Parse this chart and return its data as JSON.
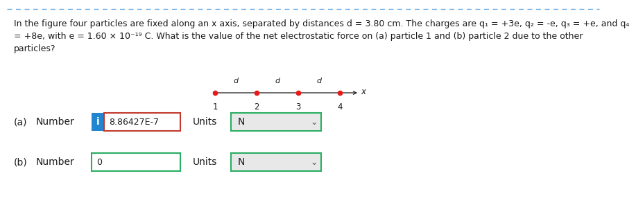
{
  "bg_color": "#ffffff",
  "top_border_color": "#6aace4",
  "main_text_line1": "In the figure four particles are fixed along an x axis, separated by distances d = 3.80 cm. The charges are q₁ = +3e, q₂ = -e, q₃ = +e, and q₄",
  "main_text_line2": "= +8e, with e = 1.60 × 10⁻¹⁹ C. What is the value of the net electrostatic force on (a) particle 1 and (b) particle 2 due to the other",
  "main_text_line3": "particles?",
  "particle_labels": [
    "1",
    "2",
    "3",
    "4"
  ],
  "d_labels": [
    "d",
    "d",
    "d"
  ],
  "axis_label": "x",
  "dot_color": "#e8191a",
  "line_color": "#1a1a1a",
  "row_a_label": "(a)",
  "row_a_number_label": "Number",
  "row_a_i_bg": "#2185d0",
  "row_a_i_text": "i",
  "row_a_value": "8.86427E-7",
  "row_a_box_border_color": "#c0392b",
  "row_a_units_label": "Units",
  "row_a_units_value": "N",
  "row_a_units_border": "#27ae60",
  "row_b_label": "(b)",
  "row_b_number_label": "Number",
  "row_b_value": "0",
  "row_b_box_border": "#27ae60",
  "row_b_units_label": "Units",
  "row_b_units_value": "N",
  "row_b_units_border": "#27ae60",
  "text_color": "#1a1a1a",
  "gray_text_color": "#555555",
  "units_bg": "#e8e8e8",
  "font_size_main": 9.0,
  "font_size_labels": 10.0,
  "font_size_small": 8.5,
  "chevron_char": "⌄"
}
